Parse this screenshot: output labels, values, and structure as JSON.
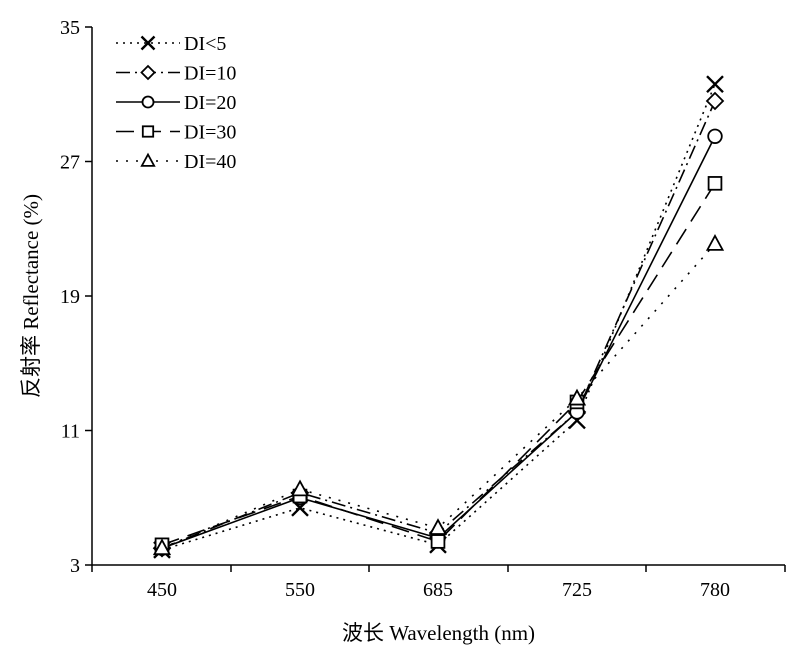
{
  "chart_data": {
    "type": "line",
    "categories": [
      "450",
      "550",
      "685",
      "725",
      "780"
    ],
    "xlabel": "波长 Wavelength (nm)",
    "ylabel": "反射率 Reflectance (%)",
    "ylim": [
      3,
      35
    ],
    "yticks": [
      3,
      11,
      19,
      27,
      35
    ],
    "grid": false,
    "legend_position": "top-left",
    "series": [
      {
        "name": "DI<5",
        "marker": "x",
        "line_style": "dotted",
        "values": [
          3.9,
          6.4,
          4.2,
          11.6,
          31.6
        ]
      },
      {
        "name": "DI=10",
        "marker": "diamond",
        "line_style": "dash-dot",
        "values": [
          4.0,
          7.3,
          4.9,
          12.1,
          30.6
        ]
      },
      {
        "name": "DI=20",
        "marker": "circle",
        "line_style": "solid",
        "values": [
          4.0,
          7.0,
          4.6,
          12.1,
          28.5
        ]
      },
      {
        "name": "DI=30",
        "marker": "square",
        "line_style": "long-dash",
        "values": [
          4.2,
          7.1,
          4.4,
          12.7,
          25.7
        ]
      },
      {
        "name": "DI=40",
        "marker": "triangle",
        "line_style": "sparse-dot",
        "values": [
          4.0,
          7.5,
          5.2,
          12.9,
          22.1
        ]
      }
    ]
  }
}
